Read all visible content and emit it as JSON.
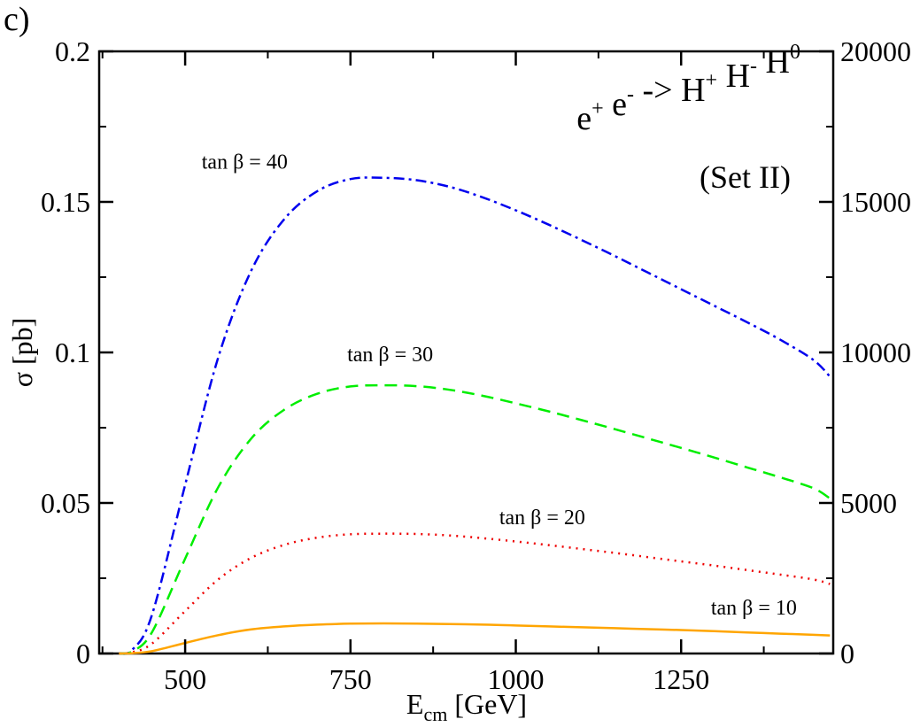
{
  "panel_label": "c)",
  "chart_data": {
    "type": "line",
    "title": "e+ e- -> H+ H- H0",
    "reaction": {
      "parts": [
        {
          "base": "e",
          "sup": "+"
        },
        {
          "base": "e",
          "sup": "-"
        },
        {
          "base": "->",
          "sup": ""
        },
        {
          "base": "H",
          "sup": "+"
        },
        {
          "base": "H",
          "sup": "-"
        },
        {
          "base": "H",
          "sup": "0"
        }
      ]
    },
    "subtitle": "(Set II)",
    "xlabel": "[GeV]",
    "xlabel_symbol": {
      "base": "E",
      "sub": "cm"
    },
    "ylabel": "σ [pb]",
    "xlim": [
      370,
      1480
    ],
    "ylim": [
      0,
      0.2
    ],
    "y2lim": [
      0,
      20000
    ],
    "xticks": [
      500,
      750,
      1000,
      1250
    ],
    "xtick_labels": [
      "500",
      "750",
      "1000",
      "1250"
    ],
    "yticks": [
      0,
      0.05,
      0.1,
      0.15,
      0.2
    ],
    "ytick_labels": [
      "0",
      "0.05",
      "0.1",
      "0.15",
      "0.2"
    ],
    "y2ticks": [
      0,
      5000,
      10000,
      15000,
      20000
    ],
    "y2tick_labels": [
      "0",
      "5000",
      "10000",
      "15000",
      "20000"
    ],
    "grid": false,
    "x": [
      400,
      420,
      450,
      500,
      550,
      600,
      650,
      700,
      750,
      800,
      850,
      900,
      950,
      1000,
      1050,
      1100,
      1150,
      1200,
      1250,
      1300,
      1350,
      1400,
      1450,
      1475
    ],
    "series": [
      {
        "name": "tan β = 40",
        "label": "tan β = 40",
        "color": "#0000ee",
        "dash": "12,5,3,5",
        "label_anchor": [
          590,
          0.161
        ],
        "values": [
          0.0,
          0.0012,
          0.0129,
          0.056,
          0.0983,
          0.1272,
          0.1443,
          0.1536,
          0.1576,
          0.158,
          0.1572,
          0.155,
          0.1515,
          0.1472,
          0.1424,
          0.1373,
          0.132,
          0.1265,
          0.121,
          0.1155,
          0.11,
          0.1042,
          0.0975,
          0.092
        ]
      },
      {
        "name": "tan β = 30",
        "label": "tan β = 30",
        "color": "#00ee00",
        "dash": "14,8",
        "label_anchor": [
          810,
          0.097
        ],
        "values": [
          0.0,
          0.0007,
          0.0071,
          0.0315,
          0.0552,
          0.0714,
          0.081,
          0.0863,
          0.0887,
          0.0891,
          0.0888,
          0.0876,
          0.0856,
          0.0831,
          0.0804,
          0.0775,
          0.0745,
          0.0714,
          0.0683,
          0.0651,
          0.0618,
          0.0585,
          0.0549,
          0.0515
        ]
      },
      {
        "name": "tan β = 20",
        "label": "tan β = 20",
        "color": "#ee0000",
        "dash": "2,6",
        "label_anchor": [
          1040,
          0.043
        ],
        "values": [
          0.0,
          0.0004,
          0.0033,
          0.0141,
          0.0246,
          0.0318,
          0.0361,
          0.0385,
          0.0396,
          0.0398,
          0.0397,
          0.0392,
          0.0383,
          0.0372,
          0.036,
          0.0347,
          0.0334,
          0.032,
          0.0306,
          0.0292,
          0.0277,
          0.0262,
          0.0246,
          0.0231
        ]
      },
      {
        "name": "tan β = 10",
        "label": "tan β = 10",
        "color": "#ffa500",
        "dash": "",
        "label_anchor": [
          1360,
          0.013
        ],
        "values": [
          0.0,
          0.0001,
          0.0008,
          0.0035,
          0.0061,
          0.008,
          0.009,
          0.0096,
          0.0099,
          0.01,
          0.0099,
          0.0098,
          0.0096,
          0.0093,
          0.009,
          0.0087,
          0.0084,
          0.0081,
          0.0078,
          0.0074,
          0.007,
          0.0066,
          0.0062,
          0.006
        ]
      }
    ]
  }
}
